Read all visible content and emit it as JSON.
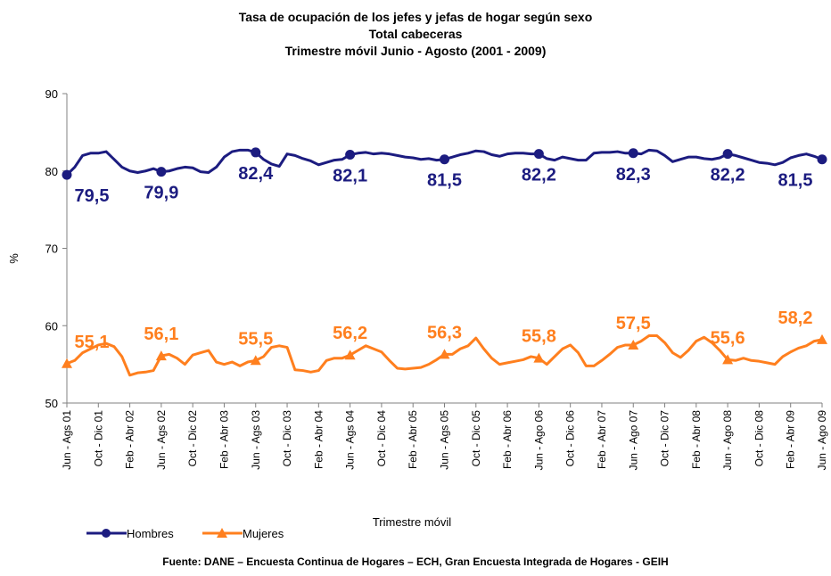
{
  "chart_data": {
    "type": "line",
    "title": [
      "Tasa de ocupación de los jefes y jefas de hogar según sexo",
      "Total cabeceras",
      "Trimestre móvil Junio - Agosto  (2001 - 2009)"
    ],
    "y_label": "%",
    "x_label": "Trimestre móvil",
    "source": "Fuente: DANE – Encuesta Continua de Hogares – ECH, Gran Encuesta Integrada de Hogares - GEIH",
    "ylim": [
      50,
      90
    ],
    "yticks": [
      50,
      60,
      70,
      80,
      90
    ],
    "grid": false,
    "legend": "bottom-left",
    "categories": [
      "Jun - Ags 01",
      null,
      null,
      null,
      "Oct - Dic 01",
      null,
      null,
      null,
      "Feb - Abr 02",
      null,
      null,
      null,
      "Jun - Ags 02",
      null,
      null,
      null,
      "Oct - Dic 02",
      null,
      null,
      null,
      "Feb - Abr 03",
      null,
      null,
      null,
      "Jun - Ags 03",
      null,
      null,
      null,
      "Oct - Dic 03",
      null,
      null,
      null,
      "Feb - Abr 04",
      null,
      null,
      null,
      "Jun - Ags 04",
      null,
      null,
      null,
      "Oct - Dic 04",
      null,
      null,
      null,
      "Feb - Abr 05",
      null,
      null,
      null,
      "Jun - Ags 05",
      null,
      null,
      null,
      "Oct - Dic 05",
      null,
      null,
      null,
      "Feb - Abr 06",
      null,
      null,
      null,
      "Jun - Ago 06",
      null,
      null,
      null,
      "Oct - Dic 06",
      null,
      null,
      null,
      "Feb - Abr 07",
      null,
      null,
      null,
      "Jun - Ago 07",
      null,
      null,
      null,
      "Oct - Dic 07",
      null,
      null,
      null,
      "Feb - Abr 08",
      null,
      null,
      null,
      "Jun - Ago 08",
      null,
      null,
      null,
      "Oct - Dic 08",
      null,
      null,
      null,
      "Feb - Abr 09",
      null,
      null,
      null,
      "Jun - Ago 09"
    ],
    "series": [
      {
        "name": "Hombres",
        "color": "#1c1c80",
        "marker": "circle",
        "values": [
          79.5,
          80.5,
          82.0,
          82.3,
          82.3,
          82.5,
          81.5,
          80.5,
          80.0,
          79.8,
          80.0,
          80.3,
          79.9,
          80.0,
          80.3,
          80.5,
          80.4,
          79.9,
          79.8,
          80.5,
          81.8,
          82.5,
          82.7,
          82.7,
          82.4,
          81.5,
          80.9,
          80.6,
          82.2,
          82.0,
          81.6,
          81.3,
          80.8,
          81.1,
          81.4,
          81.5,
          82.1,
          82.3,
          82.4,
          82.2,
          82.3,
          82.2,
          82.0,
          81.8,
          81.7,
          81.5,
          81.6,
          81.4,
          81.5,
          81.8,
          82.1,
          82.3,
          82.6,
          82.5,
          82.1,
          81.9,
          82.2,
          82.3,
          82.3,
          82.2,
          82.2,
          81.6,
          81.4,
          81.8,
          81.6,
          81.4,
          81.4,
          82.3,
          82.4,
          82.4,
          82.5,
          82.3,
          82.3,
          82.2,
          82.7,
          82.6,
          82.0,
          81.2,
          81.5,
          81.8,
          81.8,
          81.6,
          81.5,
          81.7,
          82.2,
          82.0,
          81.7,
          81.4,
          81.1,
          81.0,
          80.8,
          81.1,
          81.7,
          82.0,
          82.2,
          81.9,
          81.5
        ],
        "value_labels": [
          "79,5",
          null,
          null,
          null,
          null,
          null,
          null,
          null,
          null,
          null,
          null,
          null,
          "79,9",
          null,
          null,
          null,
          null,
          null,
          null,
          null,
          null,
          null,
          null,
          null,
          "82,4",
          null,
          null,
          null,
          null,
          null,
          null,
          null,
          null,
          null,
          null,
          null,
          "82,1",
          null,
          null,
          null,
          null,
          null,
          null,
          null,
          null,
          null,
          null,
          null,
          "81,5",
          null,
          null,
          null,
          null,
          null,
          null,
          null,
          null,
          null,
          null,
          null,
          "82,2",
          null,
          null,
          null,
          null,
          null,
          null,
          null,
          null,
          null,
          null,
          null,
          "82,3",
          null,
          null,
          null,
          null,
          null,
          null,
          null,
          null,
          null,
          null,
          null,
          "82,2",
          null,
          null,
          null,
          null,
          null,
          null,
          null,
          null,
          null,
          null,
          null,
          "81,5"
        ]
      },
      {
        "name": "Mujeres",
        "color": "#ff7f1e",
        "marker": "triangle",
        "values": [
          55.1,
          55.5,
          56.5,
          57.0,
          57.5,
          57.7,
          57.3,
          56.0,
          53.6,
          53.9,
          54.0,
          54.2,
          56.1,
          56.3,
          55.8,
          55.0,
          56.2,
          56.5,
          56.8,
          55.3,
          55.0,
          55.3,
          54.8,
          55.3,
          55.5,
          56.0,
          57.2,
          57.4,
          57.2,
          54.3,
          54.2,
          54.0,
          54.2,
          55.5,
          55.8,
          55.8,
          56.2,
          56.8,
          57.4,
          57.0,
          56.6,
          55.5,
          54.5,
          54.4,
          54.5,
          54.6,
          55.0,
          55.6,
          56.3,
          56.3,
          57.0,
          57.4,
          58.4,
          57.0,
          55.8,
          55.0,
          55.2,
          55.4,
          55.6,
          56.0,
          55.8,
          55.0,
          56.0,
          57.0,
          57.5,
          56.5,
          54.8,
          54.8,
          55.5,
          56.3,
          57.2,
          57.5,
          57.5,
          58.0,
          58.7,
          58.7,
          57.8,
          56.5,
          55.9,
          56.8,
          58.0,
          58.5,
          57.8,
          56.8,
          55.6,
          55.5,
          55.8,
          55.5,
          55.4,
          55.2,
          55.0,
          56.0,
          56.6,
          57.1,
          57.4,
          58.0,
          58.2
        ],
        "value_labels": [
          "55,1",
          null,
          null,
          null,
          null,
          null,
          null,
          null,
          null,
          null,
          null,
          null,
          "56,1",
          null,
          null,
          null,
          null,
          null,
          null,
          null,
          null,
          null,
          null,
          null,
          "55,5",
          null,
          null,
          null,
          null,
          null,
          null,
          null,
          null,
          null,
          null,
          null,
          "56,2",
          null,
          null,
          null,
          null,
          null,
          null,
          null,
          null,
          null,
          null,
          null,
          "56,3",
          null,
          null,
          null,
          null,
          null,
          null,
          null,
          null,
          null,
          null,
          null,
          "55,8",
          null,
          null,
          null,
          null,
          null,
          null,
          null,
          null,
          null,
          null,
          null,
          "57,5",
          null,
          null,
          null,
          null,
          null,
          null,
          null,
          null,
          null,
          null,
          null,
          "55,6",
          null,
          null,
          null,
          null,
          null,
          null,
          null,
          null,
          null,
          null,
          null,
          "58,2"
        ]
      }
    ]
  }
}
